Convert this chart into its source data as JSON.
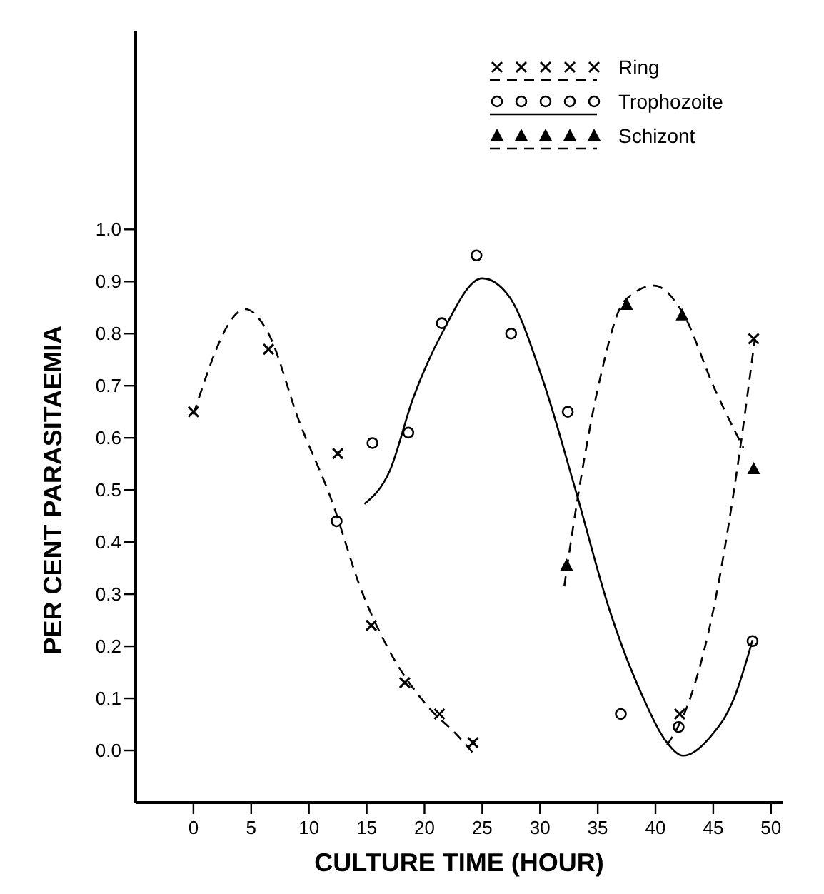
{
  "chart_data": {
    "type": "scatter",
    "xlabel": "CULTURE TIME (HOUR)",
    "ylabel": "PER CENT PARASITAEMIA",
    "xlim": [
      -5,
      51
    ],
    "ylim": [
      -0.1,
      1.38
    ],
    "xticks": [
      0,
      5,
      10,
      15,
      20,
      25,
      30,
      35,
      40,
      45,
      50
    ],
    "yticks": [
      {
        "value": 0,
        "label": "0.0"
      },
      {
        "value": 0.1,
        "label": "0.1"
      },
      {
        "value": 0.2,
        "label": "0.2"
      },
      {
        "value": 0.3,
        "label": "0.3"
      },
      {
        "value": 0.4,
        "label": "0.4"
      },
      {
        "value": 0.5,
        "label": "0.5"
      },
      {
        "value": 0.6,
        "label": "0.6"
      },
      {
        "value": 0.7,
        "label": "0.7"
      },
      {
        "value": 0.8,
        "label": "0.8"
      },
      {
        "value": 0.9,
        "label": "0.9"
      },
      {
        "value": 1,
        "label": "1.0"
      }
    ],
    "grid": false,
    "legend": "top right",
    "series": [
      {
        "name": "Ring",
        "marker": "cross",
        "line_style": "dashed",
        "color": "#000000",
        "x": [
          0,
          6.5,
          12.5,
          15.4,
          18.3,
          21.3,
          24.2,
          42.1,
          48.5
        ],
        "values": [
          0.65,
          0.77,
          0.57,
          0.24,
          0.13,
          0.07,
          0.015,
          0.07,
          0.79
        ]
      },
      {
        "name": "Trophozoite",
        "marker": "circle",
        "line_style": "solid",
        "color": "#000000",
        "x": [
          12.4,
          15.5,
          18.6,
          21.5,
          24.5,
          27.5,
          32.4,
          37,
          42,
          48.4
        ],
        "values": [
          0.44,
          0.59,
          0.61,
          0.82,
          0.95,
          0.8,
          0.65,
          0.07,
          0.045,
          0.21
        ]
      },
      {
        "name": "Schizont",
        "marker": "triangle",
        "line_style": "dashed",
        "color": "#000000",
        "x": [
          32.3,
          37.5,
          42.3,
          48.5
        ],
        "values": [
          0.355,
          0.855,
          0.835,
          0.54
        ]
      },
      {
        "type": "line",
        "line_style": "dashed",
        "marker": "none",
        "color": "#000000",
        "x": [
          0,
          4.5,
          6.5,
          9.1,
          12,
          14.5,
          17,
          20.3,
          22.8,
          24.4
        ],
        "values": [
          0.645,
          0.847,
          0.8,
          0.635,
          0.478,
          0.31,
          0.19,
          0.084,
          0.03,
          -0.01
        ]
      },
      {
        "type": "line",
        "line_style": "dashed",
        "marker": "none",
        "color": "#000000",
        "x": [
          41,
          43,
          45.1,
          46.8,
          48.6
        ],
        "values": [
          0.01,
          0.1,
          0.28,
          0.5,
          0.79
        ]
      },
      {
        "type": "line",
        "line_style": "solid",
        "marker": "none",
        "color": "#000000",
        "x": [
          14.8,
          17,
          19,
          21.5,
          25,
          27.3,
          30.2,
          33.1,
          36,
          38.9,
          41,
          42.4,
          44.7,
          46.8,
          48.4
        ],
        "values": [
          0.473,
          0.537,
          0.675,
          0.8,
          0.906,
          0.872,
          0.714,
          0.498,
          0.271,
          0.103,
          0.015,
          -0.01,
          0.025,
          0.1,
          0.212
        ]
      },
      {
        "type": "line",
        "line_style": "dashed",
        "marker": "none",
        "color": "#000000",
        "x": [
          32.1,
          33.5,
          35.2,
          37.3,
          39.9,
          42.3,
          45.1,
          47.6
        ],
        "values": [
          0.315,
          0.517,
          0.714,
          0.862,
          0.892,
          0.842,
          0.695,
          0.581
        ]
      }
    ]
  }
}
